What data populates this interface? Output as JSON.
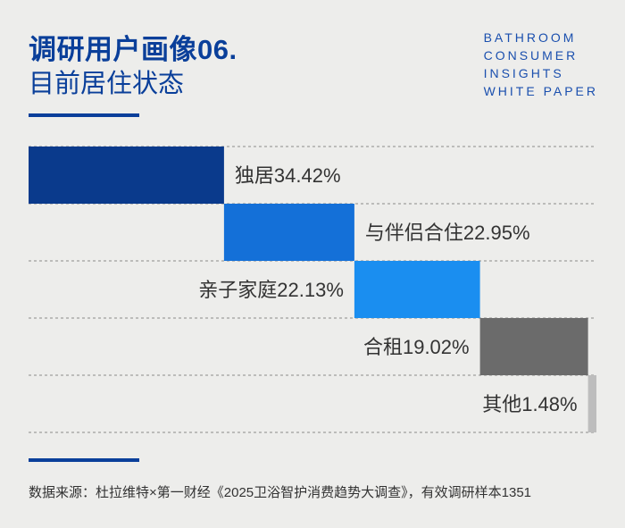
{
  "header": {
    "title_main": "调研用户画像06.",
    "title_sub": "目前居住状态",
    "brand_lines": [
      "BATHROOM",
      "CONSUMER",
      "INSIGHTS",
      "WHITE PAPER"
    ]
  },
  "chart_data": {
    "type": "bar",
    "layout": "waterfall-horizontal",
    "categories": [
      "独居",
      "与伴侣合住",
      "亲子家庭",
      "合租",
      "其他"
    ],
    "values": [
      34.42,
      22.95,
      22.13,
      19.02,
      1.48
    ],
    "labels": [
      "独居34.42%",
      "与伴侣合住22.95%",
      "亲子家庭22.13%",
      "合租19.02%",
      "其他1.48%"
    ],
    "colors": [
      "#0a3a8c",
      "#1470d8",
      "#1a8ef0",
      "#6b6b6b",
      "#bdbdbd"
    ],
    "unit": "%",
    "grid": "dashed horizontal separators"
  },
  "footer": {
    "source": "数据来源：杜拉维特×第一财经《2025卫浴智护消费趋势大调查》，有效调研样本1351"
  }
}
